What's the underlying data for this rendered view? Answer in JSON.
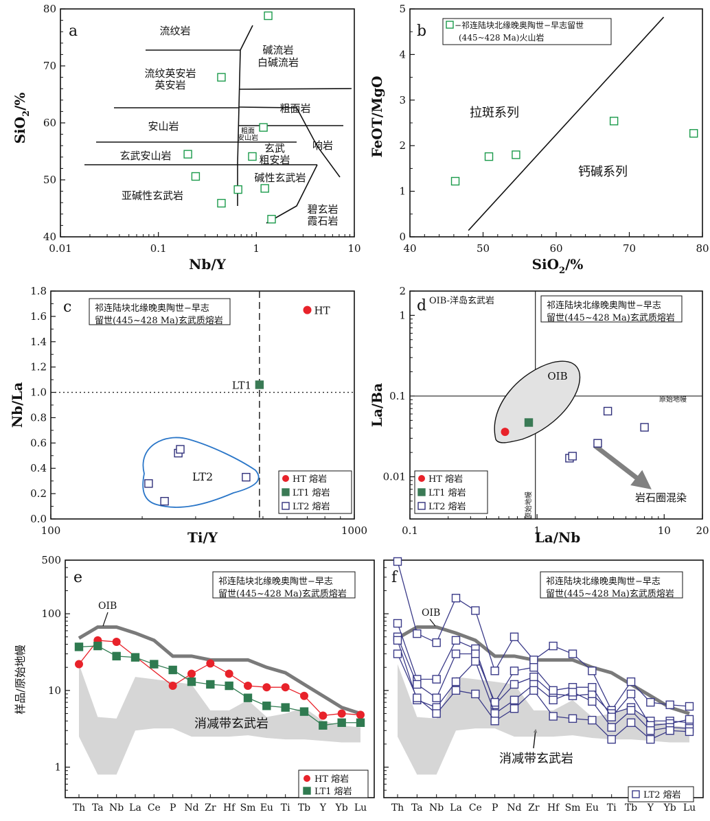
{
  "chart_data": [
    {
      "panel": "a",
      "type": "scatter",
      "xlabel": "Nb/Y",
      "ylabel": "SiO2/%",
      "xscale": "log",
      "xlim": [
        0.01,
        10
      ],
      "ylim": [
        40,
        80
      ],
      "xticks": [
        "0.01",
        "0.1",
        "1",
        "10"
      ],
      "yticks": [
        "40",
        "50",
        "60",
        "70",
        "80"
      ],
      "fields": [
        "流纹岩",
        "碱流岩",
        "白碱流岩",
        "流纹英安岩",
        "英安岩",
        "粗面岩",
        "安山岩",
        "粗面",
        "安山岩",
        "玄武",
        "粗安岩",
        "响岩",
        "玄武安山岩",
        "碱性玄武岩",
        "亚碱性玄武岩",
        "碧玄岩",
        "霞石岩"
      ],
      "series": [
        {
          "marker": "open-square",
          "color": "#1a9a4a",
          "x": [
            1.32,
            0.44,
            1.18,
            0.91,
            0.2,
            0.24,
            0.65,
            1.22,
            0.44,
            1.43
          ],
          "y": [
            78.8,
            68.0,
            59.2,
            54.1,
            54.5,
            50.6,
            48.3,
            48.5,
            45.9,
            43.1
          ]
        }
      ]
    },
    {
      "panel": "b",
      "type": "scatter",
      "xlabel": "SiO2/%",
      "ylabel": "FeOT/MgO",
      "xlim": [
        40,
        80
      ],
      "ylim": [
        0,
        5
      ],
      "xticks": [
        "40",
        "50",
        "60",
        "70",
        "80"
      ],
      "yticks": [
        "0",
        "1",
        "2",
        "3",
        "4",
        "5"
      ],
      "legend": "−祁连陆块北缘晚奥陶世−早志留世|(445~428 Ma)火山岩",
      "fields": [
        "拉斑系列",
        "钙碱系列"
      ],
      "series": [
        {
          "marker": "open-square",
          "color": "#1a9a4a",
          "x": [
            46.2,
            50.8,
            54.5,
            67.9,
            78.8
          ],
          "y": [
            1.22,
            1.76,
            1.8,
            2.54,
            2.27
          ]
        }
      ]
    },
    {
      "panel": "c",
      "type": "scatter",
      "xlabel": "Ti/Y",
      "ylabel": "Nb/La",
      "xscale": "log",
      "xlim": [
        100,
        1000
      ],
      "ylim": [
        0,
        1.8
      ],
      "xticks": [
        "100",
        "1000"
      ],
      "yticks": [
        "0.0",
        "0.2",
        "0.4",
        "0.6",
        "0.8",
        "1.0",
        "1.2",
        "1.4",
        "1.6",
        "1.8"
      ],
      "note": "祁连陆块北缘晚奥陶世−早志|留世(445~428 Ma)玄武质熔岩",
      "labels": [
        "HT",
        "LT1",
        "LT2"
      ],
      "series": [
        {
          "name": "HT 熔岩",
          "marker": "filled-circle",
          "color": "#e8222a",
          "x": [
            700
          ],
          "y": [
            1.65
          ]
        },
        {
          "name": "LT1 熔岩",
          "marker": "filled-square",
          "color": "#3a7a55",
          "x": [
            487
          ],
          "y": [
            1.06
          ]
        },
        {
          "name": "LT2 熔岩",
          "marker": "open-square",
          "color": "#2f2f7a",
          "x": [
            210,
            237,
            263,
            267,
            440
          ],
          "y": [
            0.28,
            0.14,
            0.52,
            0.55,
            0.33
          ]
        }
      ]
    },
    {
      "panel": "d",
      "type": "scatter",
      "xlabel": "La/Nb",
      "ylabel": "La/Ba",
      "xscale": "log",
      "yscale": "log",
      "xlim": [
        0.1,
        20
      ],
      "ylim": [
        0.003,
        2
      ],
      "xticks": [
        "0.1",
        "1",
        "10",
        "20"
      ],
      "yticks": [
        "0.01",
        "0.1",
        "1",
        "2"
      ],
      "note": "祁连陆块北缘晚奥陶世−早志|留世(445~428 Ma)玄武质熔岩",
      "annotations": [
        "OIB-洋岛玄武岩",
        "OIB",
        "原始地幔",
        "原始地幔",
        "岩石圈混染"
      ],
      "series": [
        {
          "name": "HT 熔岩",
          "marker": "filled-circle",
          "color": "#e8222a",
          "x": [
            0.56
          ],
          "y": [
            0.036
          ]
        },
        {
          "name": "LT1 熔岩",
          "marker": "filled-square",
          "color": "#3a7a55",
          "x": [
            0.86
          ],
          "y": [
            0.047
          ]
        },
        {
          "name": "LT2 熔岩",
          "marker": "open-square",
          "color": "#2f2f7a",
          "x": [
            1.8,
            1.9,
            3.0,
            3.6,
            7.0
          ],
          "y": [
            0.017,
            0.018,
            0.026,
            0.065,
            0.041
          ]
        }
      ]
    },
    {
      "panel": "e",
      "type": "line",
      "ylabel": "样品/原始地幔",
      "yscale": "log",
      "ylim": [
        0.4,
        500
      ],
      "yticks": [
        "1",
        "10",
        "100",
        "500"
      ],
      "categories": [
        "Th",
        "Ta",
        "Nb",
        "La",
        "Ce",
        "P",
        "Nd",
        "Zr",
        "Hf",
        "Sm",
        "Eu",
        "Ti",
        "Tb",
        "Y",
        "Yb",
        "Lu"
      ],
      "note": "祁连陆块北缘晚奥陶世−早志|留世(445~428 Ma)玄武质熔岩",
      "annotations": [
        "OIB",
        "消减带玄武岩"
      ],
      "series": [
        {
          "name": "OIB",
          "color": "#7a7a7a",
          "values": [
            48,
            67,
            67,
            56,
            45,
            28,
            28,
            25,
            25,
            25,
            20,
            17,
            12,
            8.5,
            6,
            5
          ]
        },
        {
          "name": "HT 熔岩",
          "color": "#e8222a",
          "values": [
            22,
            45,
            43,
            null,
            null,
            11.5,
            16.5,
            22.5,
            16.5,
            11.5,
            11,
            11,
            8.5,
            4.7,
            5,
            4.8
          ]
        },
        {
          "name": "LT1 熔岩",
          "color": "#2f7a50",
          "values": [
            37,
            38,
            28,
            27,
            22,
            18.5,
            13,
            12,
            11.5,
            8,
            6.3,
            6,
            5.3,
            3.5,
            3.8,
            3.8
          ]
        }
      ],
      "band": {
        "name": "消减带玄武岩",
        "upper": [
          22,
          4.5,
          4.3,
          15,
          14,
          13,
          12,
          5.5,
          5.5,
          7.5,
          4.5,
          5,
          6,
          4,
          3.5,
          3.3
        ],
        "lower": [
          2.5,
          0.8,
          0.8,
          3.0,
          3.2,
          3.2,
          2.5,
          2.5,
          2.5,
          2.6,
          2.4,
          2.3,
          2.3,
          2.2,
          2.1,
          2.1
        ]
      }
    },
    {
      "panel": "f",
      "type": "line",
      "yscale": "log",
      "ylim": [
        0.4,
        500
      ],
      "categories": [
        "Th",
        "Ta",
        "Nb",
        "La",
        "Ce",
        "P",
        "Nd",
        "Zr",
        "Hf",
        "Sm",
        "Eu",
        "Ti",
        "Tb",
        "Y",
        "Yb",
        "Lu"
      ],
      "note": "祁连陆块北缘晚奥陶世−早志|留世(445~428 Ma)玄武质熔岩",
      "annotations": [
        "OIB",
        "消减带玄武岩"
      ],
      "series": [
        {
          "name": "OIB",
          "color": "#7a7a7a",
          "values": [
            48,
            67,
            67,
            56,
            45,
            28,
            28,
            25,
            25,
            25,
            20,
            17,
            12,
            8.5,
            6,
            5
          ]
        },
        {
          "name": "LT2 熔岩",
          "color": "#3a3a88",
          "values": [
            480,
            55,
            42,
            160,
            110,
            18,
            50,
            25,
            38,
            30,
            18,
            5.5,
            13,
            7,
            6.5,
            6.2
          ]
        },
        {
          "name": "LT2 熔岩",
          "color": "#3a3a88",
          "values": [
            75,
            14,
            14,
            45,
            35,
            6.5,
            12,
            15,
            9,
            8.5,
            9,
            5,
            6,
            4,
            4,
            3.8
          ]
        },
        {
          "name": "LT2 熔岩",
          "color": "#3a3a88",
          "values": [
            50,
            12,
            8,
            30,
            30,
            7,
            18,
            20,
            10,
            11,
            11,
            4.5,
            9,
            3.5,
            3.7,
            4.2
          ]
        },
        {
          "name": "LT2 熔岩",
          "color": "#3a3a88",
          "values": [
            45,
            7.5,
            6,
            13,
            24,
            5,
            7.5,
            12,
            7.5,
            9.5,
            7.2,
            3.3,
            5.5,
            3,
            3.3,
            3.2
          ]
        },
        {
          "name": "LT2 熔岩",
          "color": "#3a3a88",
          "values": [
            30,
            8,
            5,
            10,
            9,
            4,
            5.8,
            10,
            4.6,
            4.3,
            4.1,
            2.3,
            3.8,
            2.3,
            3,
            2.9
          ]
        }
      ],
      "band": {
        "name": "消减带玄武岩",
        "upper": [
          22,
          4.5,
          4.3,
          15,
          14,
          13,
          12,
          5.5,
          5.5,
          7.5,
          4.5,
          5,
          6,
          4,
          3.5,
          3.3
        ],
        "lower": [
          2.5,
          0.8,
          0.8,
          3.0,
          3.2,
          3.2,
          2.5,
          2.5,
          2.5,
          2.6,
          2.4,
          2.3,
          2.3,
          2.2,
          2.1,
          2.1
        ]
      }
    }
  ]
}
